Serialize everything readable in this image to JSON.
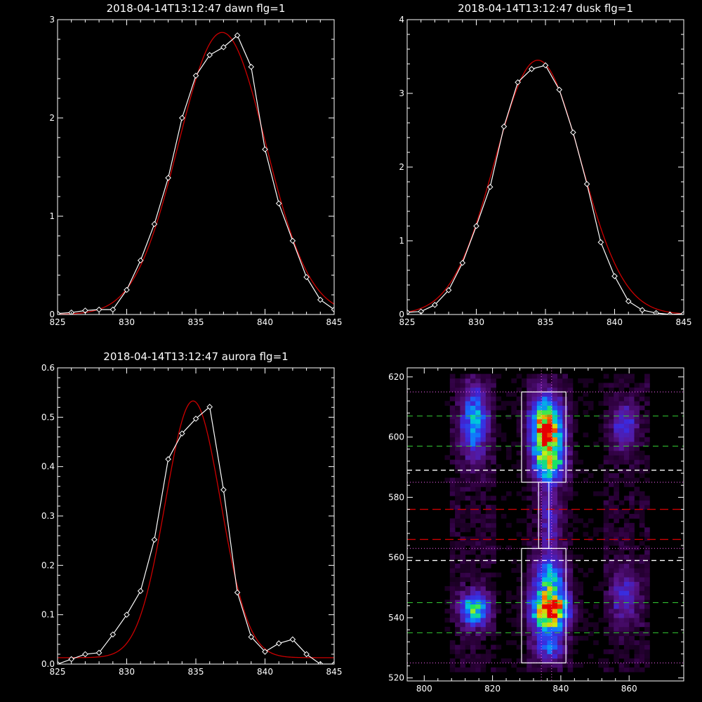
{
  "colors": {
    "background": "#000000",
    "axis": "#ffffff",
    "data_line": "#ffffff",
    "fit_line": "#cc0000",
    "green_dash": "#33cc33",
    "red_dash": "#cc0000",
    "white_dash": "#ffffff",
    "box": "#ffffff",
    "dotted": "#ff66ff"
  },
  "chart_data": [
    {
      "type": "line",
      "title": "2018-04-14T13:12:47 dawn flg=1",
      "xlim": [
        825,
        845
      ],
      "ylim": [
        0,
        3
      ],
      "xticks": [
        825,
        830,
        835,
        840,
        845
      ],
      "yticks": [
        0,
        1,
        2,
        3
      ],
      "series": [
        {
          "kind": "data_markers",
          "x": [
            825,
            826,
            827,
            828,
            829,
            830,
            831,
            832,
            833,
            834,
            835,
            836,
            837,
            838,
            839,
            840,
            841,
            842,
            843,
            844,
            845
          ],
          "y": [
            0.01,
            0.02,
            0.04,
            0.05,
            0.05,
            0.25,
            0.55,
            0.92,
            1.39,
            2.0,
            2.43,
            2.64,
            2.72,
            2.84,
            2.52,
            1.68,
            1.13,
            0.75,
            0.38,
            0.15,
            0.05
          ]
        },
        {
          "kind": "fit",
          "gaussian": {
            "amplitude": 2.87,
            "center": 836.9,
            "sigma": 3.15,
            "offset": 0.0
          }
        }
      ]
    },
    {
      "type": "line",
      "title": "2018-04-14T13:12:47 dusk flg=1",
      "xlim": [
        825,
        845
      ],
      "ylim": [
        0,
        4
      ],
      "xticks": [
        825,
        830,
        835,
        840,
        845
      ],
      "yticks": [
        0,
        1,
        2,
        3,
        4
      ],
      "series": [
        {
          "kind": "data_markers",
          "x": [
            825,
            826,
            827,
            828,
            829,
            830,
            831,
            832,
            833,
            834,
            835,
            836,
            837,
            838,
            839,
            840,
            841,
            842,
            843,
            844,
            845
          ],
          "y": [
            0.03,
            0.04,
            0.13,
            0.33,
            0.7,
            1.2,
            1.73,
            2.55,
            3.15,
            3.33,
            3.38,
            3.05,
            2.47,
            1.77,
            0.98,
            0.52,
            0.18,
            0.06,
            0.02,
            0.0,
            0.01
          ]
        },
        {
          "kind": "fit",
          "gaussian": {
            "amplitude": 3.45,
            "center": 834.45,
            "sigma": 3.1,
            "offset": 0.0
          }
        }
      ]
    },
    {
      "type": "line",
      "title": "2018-04-14T13:12:47 aurora flg=1",
      "xlim": [
        825,
        845
      ],
      "ylim": [
        0,
        0.6
      ],
      "xticks": [
        825,
        830,
        835,
        840,
        845
      ],
      "yticks": [
        0.0,
        0.1,
        0.2,
        0.3,
        0.4,
        0.5,
        0.6
      ],
      "series": [
        {
          "kind": "data_markers",
          "x": [
            825,
            826,
            827,
            828,
            829,
            830,
            831,
            832,
            833,
            834,
            835,
            836,
            837,
            838,
            839,
            840,
            841,
            842,
            843,
            844,
            845
          ],
          "y": [
            0.0,
            0.01,
            0.02,
            0.023,
            0.06,
            0.1,
            0.148,
            0.252,
            0.415,
            0.467,
            0.497,
            0.521,
            0.353,
            0.145,
            0.055,
            0.025,
            0.042,
            0.05,
            0.02,
            0.0,
            0.0
          ]
        },
        {
          "kind": "fit",
          "gaussian": {
            "amplitude": 0.52,
            "center": 834.8,
            "sigma": 2.0,
            "offset": 0.013
          }
        }
      ]
    },
    {
      "type": "heatmap",
      "title": "",
      "xlim": [
        795,
        876
      ],
      "ylim": [
        519,
        623
      ],
      "xticks": [
        800,
        820,
        840,
        860
      ],
      "yticks": [
        520,
        540,
        560,
        580,
        600,
        620
      ],
      "blobs": [
        {
          "x": 814,
          "y": 604,
          "sx": 2.6,
          "sy": 8,
          "peak": 0.5
        },
        {
          "x": 835,
          "y": 602,
          "sx": 3.2,
          "sy": 7,
          "peak": 0.95
        },
        {
          "x": 836,
          "y": 590,
          "sx": 3.0,
          "sy": 4,
          "peak": 0.55
        },
        {
          "x": 858,
          "y": 603,
          "sx": 2.5,
          "sy": 5,
          "peak": 0.3
        },
        {
          "x": 814,
          "y": 542,
          "sx": 3.0,
          "sy": 4,
          "peak": 0.6
        },
        {
          "x": 836,
          "y": 542,
          "sx": 3.6,
          "sy": 4.5,
          "peak": 1.0
        },
        {
          "x": 836,
          "y": 553,
          "sx": 3.0,
          "sy": 5,
          "peak": 0.45
        },
        {
          "x": 836,
          "y": 530,
          "sx": 3.0,
          "sy": 4,
          "peak": 0.35
        },
        {
          "x": 858,
          "y": 546,
          "sx": 3.0,
          "sy": 6,
          "peak": 0.25
        },
        {
          "x": 836,
          "y": 572,
          "sx": 2.0,
          "sy": 8,
          "peak": 0.25
        }
      ],
      "extraction_boxes": [
        {
          "x0": 828.5,
          "x1": 841.5,
          "y0": 585,
          "y1": 615
        },
        {
          "x0": 833.5,
          "x1": 836.5,
          "y0": 563,
          "y1": 585
        },
        {
          "x0": 828.5,
          "x1": 841.5,
          "y0": 525,
          "y1": 563
        }
      ],
      "green_dashed_y": [
        607,
        597,
        545,
        535
      ],
      "white_dashed_y": [
        589,
        559
      ],
      "red_dashed_y": [
        576,
        566
      ],
      "dotted_y": [
        615,
        585,
        563,
        525
      ],
      "dotted_x": [
        834.3,
        837.3
      ]
    }
  ]
}
